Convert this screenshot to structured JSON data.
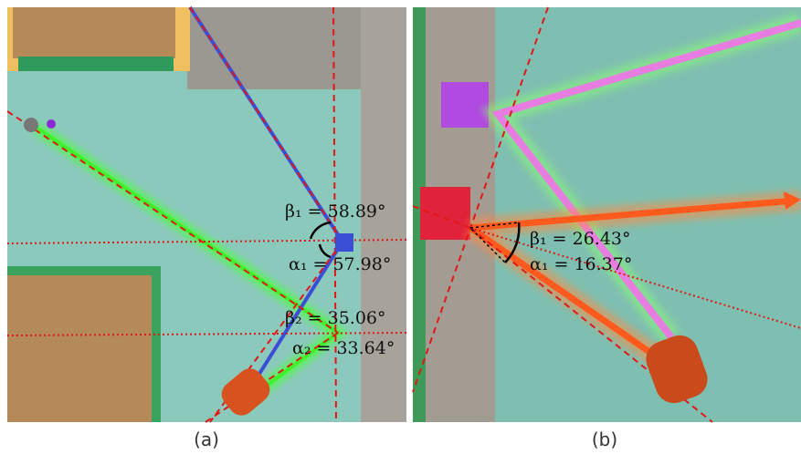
{
  "panels": [
    {
      "label": "(a)",
      "annotations": [
        "β₁ = 58.89°",
        "α₁ = 57.98°",
        "β₂ = 35.06°",
        "α₂ = 33.64°"
      ]
    },
    {
      "label": "(b)",
      "annotations": [
        "β₁ = 26.43°",
        "α₁ = 16.37°"
      ]
    }
  ]
}
